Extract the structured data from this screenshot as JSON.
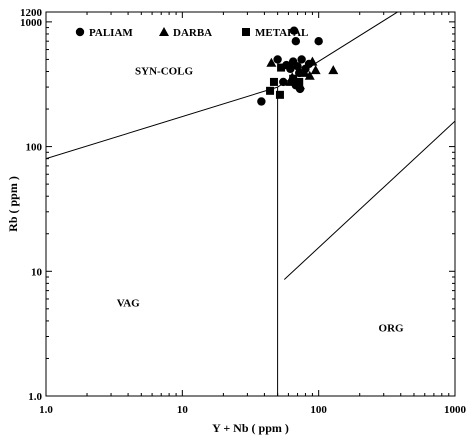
{
  "chart_data": {
    "type": "scatter",
    "title": "",
    "xlabel": "Y + Nb ( ppm )",
    "ylabel": "Rb ( ppm )",
    "xscale": "log",
    "yscale": "log",
    "xlim": [
      1,
      1000
    ],
    "ylim": [
      1,
      1200
    ],
    "x_ticks": [
      {
        "value": 1,
        "label": "1.0"
      },
      {
        "value": 10,
        "label": "10"
      },
      {
        "value": 100,
        "label": "100"
      },
      {
        "value": 1000,
        "label": "1000"
      }
    ],
    "y_ticks": [
      {
        "value": 1,
        "label": "1.0"
      },
      {
        "value": 10,
        "label": "10"
      },
      {
        "value": 100,
        "label": "100"
      },
      {
        "value": 1000,
        "label": "1000"
      },
      {
        "value": 1200,
        "label": "1200"
      }
    ],
    "grid": false,
    "legend_position": "top-left",
    "series": [
      {
        "name": "PALIAM",
        "marker": "circle",
        "points": [
          {
            "x": 66,
            "y": 850
          },
          {
            "x": 68,
            "y": 700
          },
          {
            "x": 100,
            "y": 700
          },
          {
            "x": 50,
            "y": 500
          },
          {
            "x": 65,
            "y": 480
          },
          {
            "x": 75,
            "y": 500
          },
          {
            "x": 85,
            "y": 460
          },
          {
            "x": 58,
            "y": 450
          },
          {
            "x": 70,
            "y": 440
          },
          {
            "x": 62,
            "y": 420
          },
          {
            "x": 80,
            "y": 420
          },
          {
            "x": 72,
            "y": 390
          },
          {
            "x": 55,
            "y": 330
          },
          {
            "x": 68,
            "y": 310
          },
          {
            "x": 73,
            "y": 290
          },
          {
            "x": 38,
            "y": 230
          }
        ]
      },
      {
        "name": "DARBA",
        "marker": "triangle",
        "points": [
          {
            "x": 90,
            "y": 480
          },
          {
            "x": 45,
            "y": 470
          },
          {
            "x": 128,
            "y": 410
          },
          {
            "x": 95,
            "y": 410
          },
          {
            "x": 79,
            "y": 390
          },
          {
            "x": 86,
            "y": 370
          },
          {
            "x": 64,
            "y": 360
          },
          {
            "x": 62,
            "y": 330
          },
          {
            "x": 73,
            "y": 310
          }
        ]
      },
      {
        "name": "METAPAL",
        "marker": "square",
        "points": [
          {
            "x": 53,
            "y": 430
          },
          {
            "x": 47,
            "y": 330
          },
          {
            "x": 44,
            "y": 280
          },
          {
            "x": 52,
            "y": 260
          },
          {
            "x": 65,
            "y": 350
          },
          {
            "x": 72,
            "y": 330
          }
        ]
      }
    ],
    "boundaries": [
      {
        "name": "syn-colg-vag",
        "points": [
          {
            "x": 1,
            "y": 80
          },
          {
            "x": 50,
            "y": 300
          }
        ]
      },
      {
        "name": "syn-colg-wpg",
        "points": [
          {
            "x": 50,
            "y": 300
          },
          {
            "x": 800,
            "y": 2000
          }
        ]
      },
      {
        "name": "vag-wpg",
        "points": [
          {
            "x": 50,
            "y": 300
          },
          {
            "x": 50,
            "y": 1
          }
        ]
      },
      {
        "name": "wpg-org",
        "points": [
          {
            "x": 56,
            "y": 8.6
          },
          {
            "x": 1000,
            "y": 160
          }
        ]
      }
    ],
    "region_labels": [
      {
        "text": "SYN-COLG",
        "x": 4.5,
        "y": 380
      },
      {
        "text": "VAG",
        "x": 3.3,
        "y": 5.2
      },
      {
        "text": "ORG",
        "x": 275,
        "y": 3.3
      }
    ],
    "colors": {
      "markers": "#000000",
      "lines": "#000000"
    }
  }
}
